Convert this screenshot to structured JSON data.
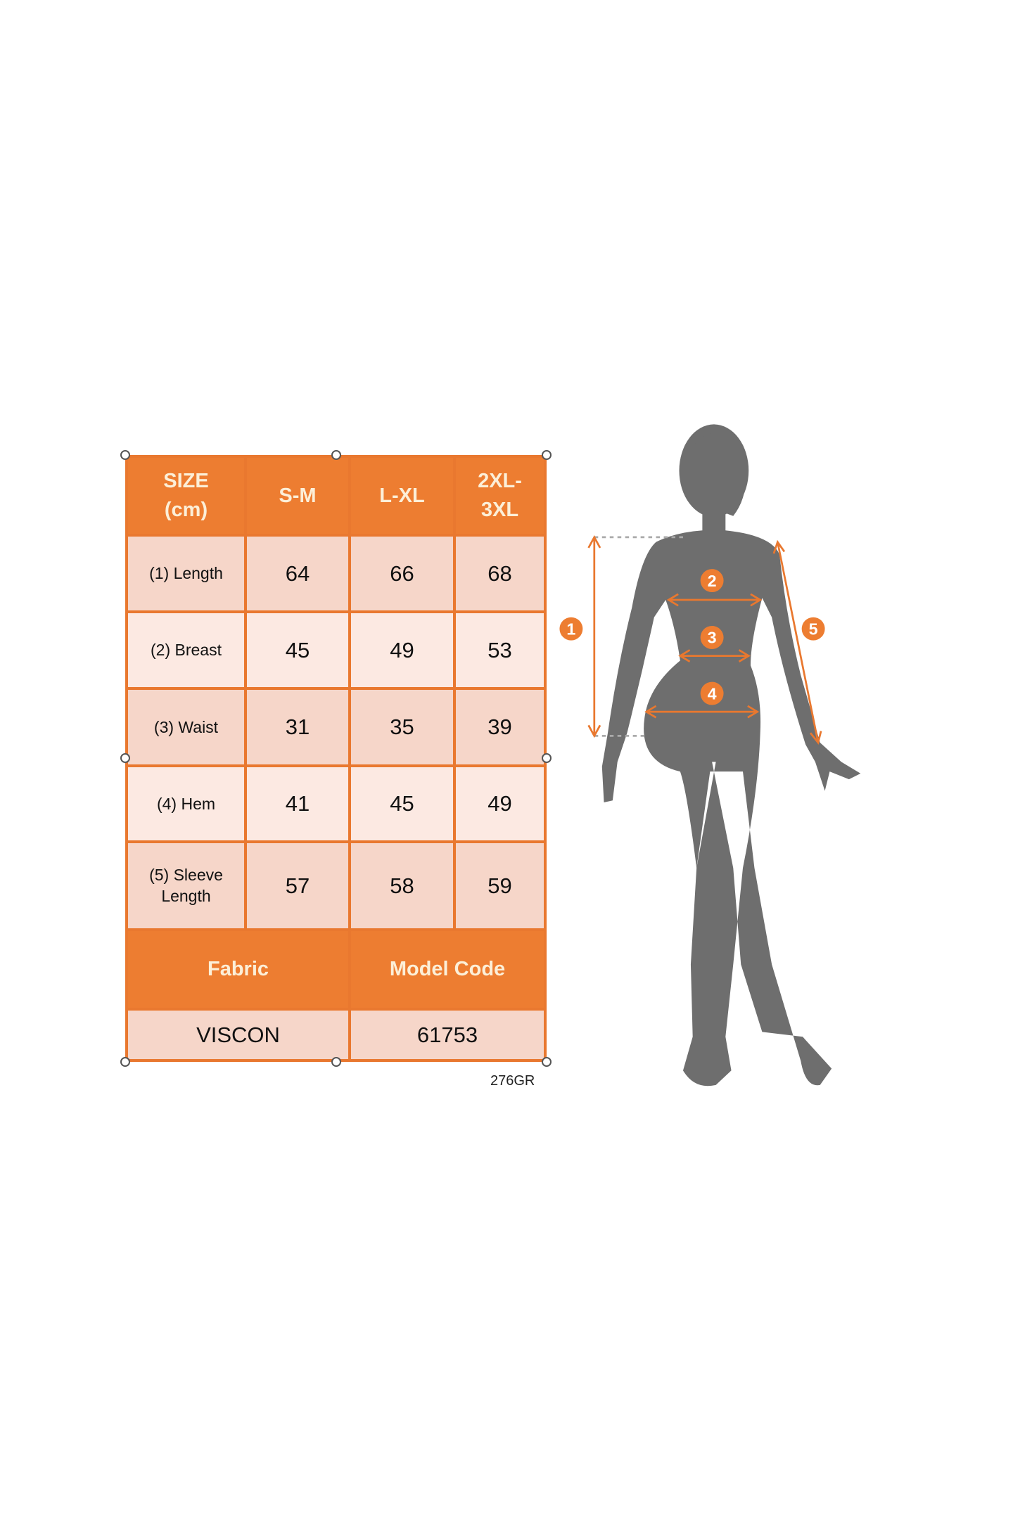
{
  "size_chart": {
    "header": [
      "SIZE\n(cm)",
      "S-M",
      "L-XL",
      "2XL-\n3XL"
    ],
    "rows": [
      {
        "label": "(1) Length",
        "values": [
          "64",
          "66",
          "68"
        ]
      },
      {
        "label": "(2) Breast",
        "values": [
          "45",
          "49",
          "53"
        ]
      },
      {
        "label": "(3) Waist",
        "values": [
          "31",
          "35",
          "39"
        ]
      },
      {
        "label": "(4) Hem",
        "values": [
          "41",
          "45",
          "49"
        ]
      },
      {
        "label": "(5) Sleeve\nLength",
        "values": [
          "57",
          "58",
          "59"
        ]
      }
    ],
    "info_header": [
      "Fabric",
      "Model Code"
    ],
    "info_values": [
      "VISCON",
      "61753"
    ],
    "product_code": "276GR"
  },
  "figure": {
    "markers": [
      "1",
      "2",
      "3",
      "4",
      "5"
    ]
  },
  "colors": {
    "accent": "#ED7D31",
    "cell_dark": "#F6D6C9",
    "cell_light": "#FCE9E2",
    "silhouette": "#6E6E6E"
  }
}
